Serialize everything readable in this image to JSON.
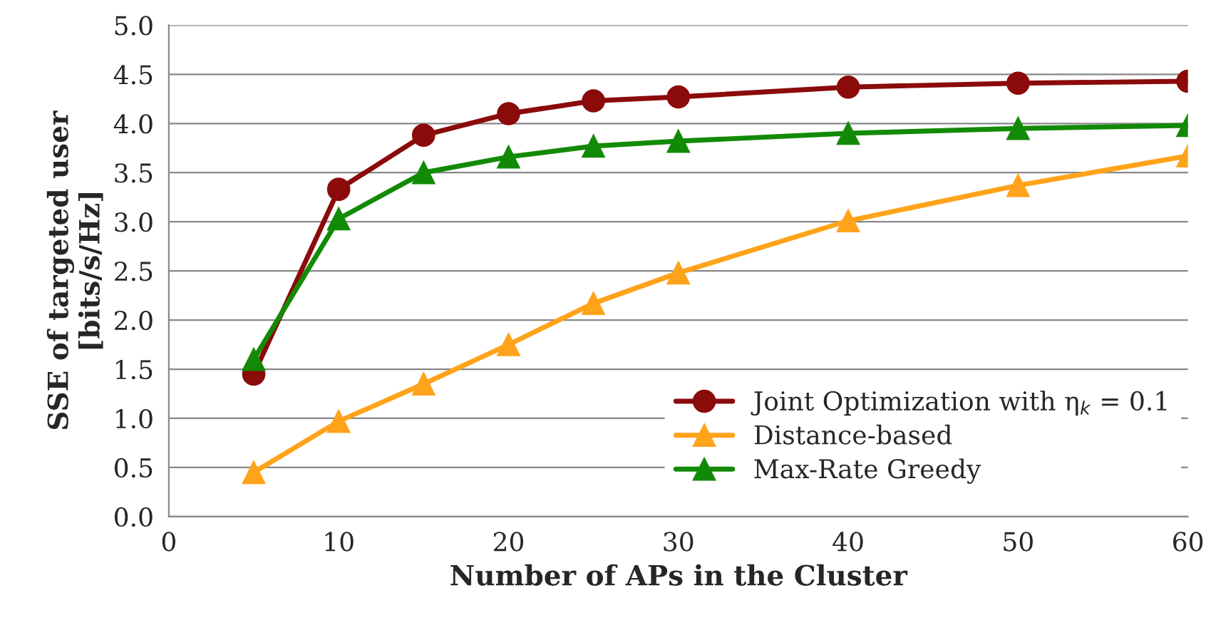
{
  "chart_data": {
    "type": "line",
    "xlabel": "Number of APs in the Cluster",
    "ylabel": "SSE of targeted user\n[bits/s/Hz]",
    "x": [
      5,
      10,
      15,
      20,
      25,
      30,
      40,
      50,
      60
    ],
    "series": [
      {
        "name": "Joint Optimization with η$_{k}$ = 0.1",
        "color": "#8b0a0a",
        "marker": "circle",
        "values": [
          1.45,
          3.33,
          3.88,
          4.1,
          4.23,
          4.27,
          4.37,
          4.41,
          4.43
        ]
      },
      {
        "name": "Distance-based",
        "color": "#ffa31a",
        "marker": "triangle",
        "values": [
          0.45,
          0.97,
          1.35,
          1.75,
          2.17,
          2.48,
          3.01,
          3.37,
          3.67
        ]
      },
      {
        "name": "Max-Rate Greedy",
        "color": "#138a07",
        "marker": "triangle",
        "values": [
          1.6,
          3.03,
          3.5,
          3.66,
          3.77,
          3.82,
          3.9,
          3.95,
          3.98
        ]
      }
    ],
    "xlim": [
      0,
      60
    ],
    "xticks": [
      0,
      10,
      20,
      30,
      40,
      50,
      60
    ],
    "ylim": [
      0,
      5
    ],
    "yticks": [
      {
        "value": 0,
        "label": "0.0"
      },
      {
        "value": 0.5,
        "label": "0.5"
      },
      {
        "value": 1,
        "label": "1.0"
      },
      {
        "value": 1.5,
        "label": "1.5"
      },
      {
        "value": 2,
        "label": "2.0"
      },
      {
        "value": 2.5,
        "label": "2.5"
      },
      {
        "value": 3,
        "label": "3.0"
      },
      {
        "value": 3.5,
        "label": "3.5"
      },
      {
        "value": 4,
        "label": "4.0"
      },
      {
        "value": 4.5,
        "label": "4.5"
      },
      {
        "value": 5,
        "label": "5.0"
      }
    ],
    "grid": "y",
    "legend": "bottom right",
    "line_style": "solid"
  }
}
